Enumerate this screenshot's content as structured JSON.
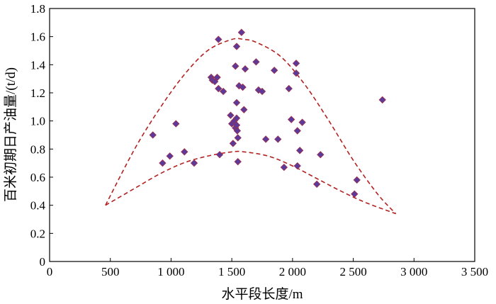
{
  "chart_data": {
    "type": "scatter",
    "title": "",
    "xlabel": "水平段长度/m",
    "ylabel": "百米初期日产油量/(t/d)",
    "xlim": [
      0,
      3500
    ],
    "ylim": [
      0,
      1.8
    ],
    "xticks": [
      0,
      500,
      1000,
      1500,
      2000,
      2500,
      3000,
      3500
    ],
    "xtick_labels": [
      "0",
      "500",
      "1 000",
      "1 500",
      "2 000",
      "2 500",
      "3 000",
      "3 500"
    ],
    "yticks": [
      0,
      0.2,
      0.4,
      0.6,
      0.8,
      1.0,
      1.2,
      1.4,
      1.6,
      1.8
    ],
    "ytick_labels": [
      "0",
      "0.2",
      "0.4",
      "0.6",
      "0.8",
      "1.0",
      "1.2",
      "1.4",
      "1.6",
      "1.8"
    ],
    "grid": false,
    "legend": "none",
    "marker_color": "#5b3a9c",
    "marker_edge_color": "#a0304a",
    "envelope_color": "#b22222",
    "series": [
      {
        "values": [
          [
            850,
            0.9
          ],
          [
            930,
            0.7
          ],
          [
            990,
            0.75
          ],
          [
            1040,
            0.98
          ],
          [
            1110,
            0.78
          ],
          [
            1190,
            0.7
          ],
          [
            1330,
            1.31
          ],
          [
            1340,
            1.29
          ],
          [
            1360,
            1.28
          ],
          [
            1380,
            1.31
          ],
          [
            1390,
            1.58
          ],
          [
            1390,
            1.23
          ],
          [
            1400,
            0.76
          ],
          [
            1430,
            1.21
          ],
          [
            1490,
            1.04
          ],
          [
            1500,
            0.98
          ],
          [
            1510,
            0.84
          ],
          [
            1520,
            1.0
          ],
          [
            1530,
            1.39
          ],
          [
            1530,
            0.95
          ],
          [
            1540,
            1.53
          ],
          [
            1540,
            1.13
          ],
          [
            1540,
            1.02
          ],
          [
            1540,
            0.97
          ],
          [
            1545,
            0.93
          ],
          [
            1550,
            0.88
          ],
          [
            1550,
            0.71
          ],
          [
            1560,
            1.25
          ],
          [
            1580,
            1.63
          ],
          [
            1590,
            1.24
          ],
          [
            1600,
            1.08
          ],
          [
            1610,
            1.37
          ],
          [
            1700,
            1.42
          ],
          [
            1720,
            1.22
          ],
          [
            1750,
            1.21
          ],
          [
            1780,
            0.87
          ],
          [
            1850,
            1.36
          ],
          [
            1880,
            0.87
          ],
          [
            1930,
            0.67
          ],
          [
            1970,
            1.23
          ],
          [
            1990,
            1.01
          ],
          [
            2030,
            1.41
          ],
          [
            2030,
            1.34
          ],
          [
            2040,
            0.93
          ],
          [
            2040,
            0.68
          ],
          [
            2060,
            0.79
          ],
          [
            2080,
            0.99
          ],
          [
            2200,
            0.55
          ],
          [
            2230,
            0.76
          ],
          [
            2510,
            0.48
          ],
          [
            2530,
            0.58
          ],
          [
            2740,
            1.15
          ]
        ]
      }
    ],
    "envelopes": [
      {
        "x": [
          460,
          700,
          900,
          1100,
          1300,
          1500,
          1600,
          1700,
          1900,
          2100,
          2300,
          2500,
          2700,
          2850
        ],
        "y": [
          0.4,
          0.8,
          1.08,
          1.32,
          1.5,
          1.58,
          1.58,
          1.56,
          1.46,
          1.26,
          1.0,
          0.72,
          0.48,
          0.34
        ]
      },
      {
        "x": [
          460,
          700,
          900,
          1100,
          1300,
          1500,
          1600,
          1800,
          2000,
          2200,
          2400,
          2600,
          2850
        ],
        "y": [
          0.4,
          0.52,
          0.62,
          0.7,
          0.75,
          0.78,
          0.78,
          0.75,
          0.68,
          0.59,
          0.5,
          0.42,
          0.34
        ]
      }
    ]
  }
}
